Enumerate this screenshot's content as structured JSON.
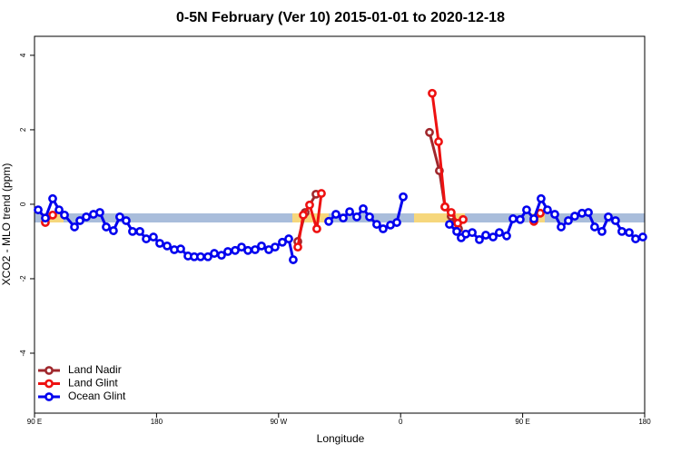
{
  "chart_data": {
    "type": "line",
    "title": "0-5N February (Ver 10)   2015-01-01 to 2020-12-18",
    "x_label": "Longitude",
    "y_label": "XCO2 - MLO trend (ppm)",
    "xlim": [
      90,
      540
    ],
    "xticks": [
      {
        "value": 90,
        "label": "90 E"
      },
      180,
      {
        "value": 270,
        "label": "90 W"
      },
      {
        "value": 360,
        "label": "0"
      },
      {
        "value": 450,
        "label": "90 E"
      },
      {
        "value": 540,
        "label": "180"
      }
    ],
    "ylim": [
      -5.61,
      4.51
    ],
    "yticks": [
      -4,
      -2,
      0,
      2,
      4
    ],
    "legend": "bottom-left",
    "series": [
      {
        "name": "Land Nadir",
        "color": "#a0282d",
        "x": [
          284.2,
          289.6,
          297.6,
          null,
          381.3,
          388.6,
          392.7,
          397.3,
          402.7
        ],
        "values": [
          -1.0,
          -0.22,
          0.27,
          null,
          1.93,
          0.9,
          -0.07,
          -0.32,
          -0.66
        ]
      },
      {
        "name": "Land Glint",
        "color": "#ee1111",
        "x": [
          98.0,
          103.4,
          null,
          284.2,
          288.2,
          292.9,
          298.2,
          301.6,
          null,
          383.3,
          388.0,
          392.7,
          397.3,
          402.1,
          406.1,
          null,
          458.3,
          463.0
        ],
        "values": [
          -0.49,
          -0.29,
          null,
          -1.15,
          -0.29,
          -0.02,
          -0.66,
          0.29,
          null,
          2.98,
          1.68,
          -0.07,
          -0.22,
          -0.51,
          -0.41,
          null,
          -0.46,
          -0.24
        ]
      },
      {
        "name": "Ocean Glint",
        "color": "#0000ee",
        "x": [
          92.7,
          98.0,
          103.4,
          108.1,
          112.1,
          119.5,
          123.5,
          128.2,
          133.5,
          138.2,
          142.9,
          148.2,
          152.9,
          157.6,
          162.3,
          167.7,
          172.4,
          177.7,
          182.4,
          187.8,
          193.1,
          197.8,
          203.2,
          207.8,
          212.5,
          217.9,
          222.6,
          227.9,
          232.6,
          238.0,
          242.7,
          247.4,
          252.7,
          257.4,
          262.8,
          267.4,
          272.8,
          277.5,
          280.8,
          null,
          307.0,
          312.3,
          317.7,
          322.4,
          327.7,
          332.4,
          337.1,
          342.4,
          347.1,
          352.5,
          357.2,
          361.9,
          null,
          396.0,
          401.4,
          404.7,
          408.1,
          412.8,
          418.1,
          422.8,
          428.2,
          432.8,
          438.2,
          442.9,
          448.2,
          452.9,
          458.3,
          463.6,
          468.3,
          473.7,
          478.4,
          483.7,
          488.4,
          493.8,
          498.5,
          503.1,
          508.5,
          513.2,
          518.5,
          523.2,
          528.6,
          533.3,
          538.6
        ],
        "values": [
          -0.15,
          -0.37,
          0.15,
          -0.15,
          -0.29,
          -0.61,
          -0.44,
          -0.34,
          -0.27,
          -0.22,
          -0.61,
          -0.71,
          -0.34,
          -0.44,
          -0.73,
          -0.73,
          -0.93,
          -0.88,
          -1.05,
          -1.12,
          -1.22,
          -1.2,
          -1.39,
          -1.41,
          -1.41,
          -1.41,
          -1.32,
          -1.37,
          -1.27,
          -1.24,
          -1.15,
          -1.24,
          -1.22,
          -1.12,
          -1.22,
          -1.15,
          -1.02,
          -0.93,
          -1.49,
          null,
          -0.46,
          -0.27,
          -0.37,
          -0.2,
          -0.34,
          -0.12,
          -0.34,
          -0.54,
          -0.66,
          -0.56,
          -0.49,
          0.2,
          null,
          -0.54,
          -0.73,
          -0.9,
          -0.8,
          -0.76,
          -0.95,
          -0.83,
          -0.88,
          -0.76,
          -0.85,
          -0.39,
          -0.41,
          -0.15,
          -0.39,
          0.15,
          -0.15,
          -0.27,
          -0.61,
          -0.44,
          -0.32,
          -0.24,
          -0.22,
          -0.61,
          -0.73,
          -0.34,
          -0.44,
          -0.73,
          -0.76,
          -0.93,
          -0.88
        ]
      }
    ]
  }
}
